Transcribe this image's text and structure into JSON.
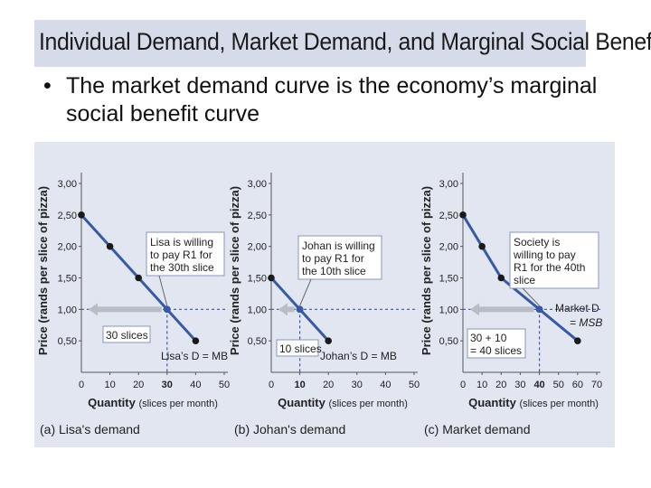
{
  "slide": {
    "title": "Individual Demand, Market Demand, and Marginal Social Benefit",
    "bullet": "The market demand curve is the economy’s marginal social benefit curve"
  },
  "colors": {
    "curve": "#3659a8",
    "point": "#1a1a1a",
    "dashed": "#3659a8",
    "panel_bg": "#e1e6f1",
    "box_bg": "#ffffff",
    "box_border": "#8a96b8"
  },
  "chart_data": [
    {
      "type": "line",
      "caption": "(a) Lisa's demand",
      "xlabel_bold": "Quantity",
      "xlabel_rest": "(slices per month)",
      "ylabel": "Price (rands per slice of pizza)",
      "xlim": [
        0,
        50
      ],
      "ylim": [
        0,
        3.0
      ],
      "x_ticks": [
        "0",
        "10",
        "20",
        "30",
        "40",
        "50"
      ],
      "y_ticks": [
        "0,50",
        "1,00",
        "1,50",
        "2,00",
        "2,50",
        "3,00"
      ],
      "highlight_x_tick": "30",
      "highlight_y_tick": "1,00",
      "series": [
        {
          "name": "Lisa’s D = MB",
          "x": [
            0,
            10,
            20,
            30,
            40
          ],
          "y": [
            2.5,
            2.0,
            1.5,
            1.0,
            0.5
          ]
        }
      ],
      "dashed_point": {
        "x": 30,
        "y": 1.0
      },
      "callout": "Lisa is willing to pay R1 for the 30th slice",
      "quantity_label": "30 slices"
    },
    {
      "type": "line",
      "caption": "(b) Johan's demand",
      "xlabel_bold": "Quantity",
      "xlabel_rest": "(slices per month)",
      "ylabel": "Price (rands per slice of pizza)",
      "xlim": [
        0,
        50
      ],
      "ylim": [
        0,
        3.0
      ],
      "x_ticks": [
        "0",
        "10",
        "20",
        "30",
        "40",
        "50"
      ],
      "y_ticks": [
        "0,50",
        "1,00",
        "1,50",
        "2,00",
        "2,50",
        "3,00"
      ],
      "highlight_x_tick": "10",
      "highlight_y_tick": "1,00",
      "series": [
        {
          "name": "Johan’s D = MB",
          "x": [
            0,
            10,
            20
          ],
          "y": [
            1.5,
            1.0,
            0.5
          ]
        }
      ],
      "dashed_point": {
        "x": 10,
        "y": 1.0
      },
      "callout": "Johan is willing to pay R1 for the 10th slice",
      "quantity_label": "10 slices"
    },
    {
      "type": "line",
      "caption": "(c) Market demand",
      "xlabel_bold": "Quantity",
      "xlabel_rest": "(slices per month)",
      "ylabel": "Price (rands per slice of pizza)",
      "xlim": [
        0,
        70
      ],
      "ylim": [
        0,
        3.0
      ],
      "x_ticks": [
        "0",
        "10",
        "20",
        "30",
        "40",
        "50",
        "60",
        "70"
      ],
      "y_ticks": [
        "0,50",
        "1,00",
        "1,50",
        "2,00",
        "2,50",
        "3,00"
      ],
      "highlight_x_tick": "40",
      "highlight_y_tick": "1,00",
      "series": [
        {
          "name": "Market D = MSB",
          "x": [
            0,
            10,
            20,
            40,
            60
          ],
          "y": [
            2.5,
            2.0,
            1.5,
            1.0,
            0.5
          ]
        }
      ],
      "dashed_point": {
        "x": 40,
        "y": 1.0
      },
      "callout": "Society is willing to pay R1 for the 40th slice",
      "quantity_label": "30 + 10 = 40 slices",
      "series_label_line1": "Market D",
      "series_label_line2": "= MSB"
    }
  ]
}
